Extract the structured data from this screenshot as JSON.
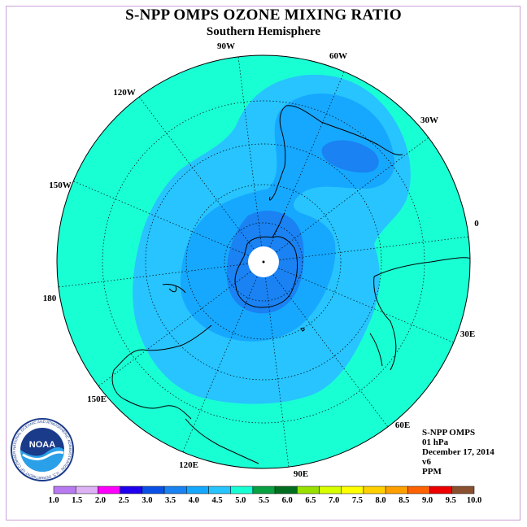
{
  "header": {
    "title": "S-NPP OMPS OZONE MIXING RATIO",
    "subtitle": "Southern Hemisphere"
  },
  "map": {
    "projection": "south polar stereographic",
    "longitude_labels": [
      "90W",
      "60W",
      "30W",
      "0",
      "30E",
      "60E",
      "90E",
      "120E",
      "150E",
      "180",
      "150W",
      "120W"
    ],
    "colors": {
      "outer": "#19ffd4",
      "ring_4_0": "#27c4ff",
      "ring_3_5": "#16a8ff",
      "ring_3_0": "#1a82f2",
      "pole_missing": "#ffffff",
      "coast": "#000000"
    }
  },
  "info": {
    "product": "S-NPP OMPS",
    "level": "01 hPa",
    "date": "December 17, 2014",
    "version": "v6",
    "units": "PPM"
  },
  "colorbar": {
    "ticks": [
      "1.0",
      "1.5",
      "2.0",
      "2.5",
      "3.0",
      "3.5",
      "4.0",
      "4.5",
      "5.0",
      "5.5",
      "6.0",
      "6.5",
      "7.0",
      "7.5",
      "8.0",
      "8.5",
      "9.0",
      "9.5",
      "10.0"
    ],
    "colors": [
      "#b77af0",
      "#dcb2f5",
      "#ff00ff",
      "#1f00ee",
      "#0a50e6",
      "#1a82f2",
      "#16a8ff",
      "#27c4ff",
      "#19ffd4",
      "#08a040",
      "#006e1e",
      "#98e000",
      "#d8ff00",
      "#ffff00",
      "#ffd000",
      "#ffa000",
      "#ff6200",
      "#ee0000",
      "#8a5030"
    ]
  },
  "logo": {
    "text": "NOAA",
    "ring_text": "NATIONAL OCEANIC AND ATMOSPHERIC ADMINISTRATION · U.S. DEPARTMENT OF COMMERCE"
  }
}
